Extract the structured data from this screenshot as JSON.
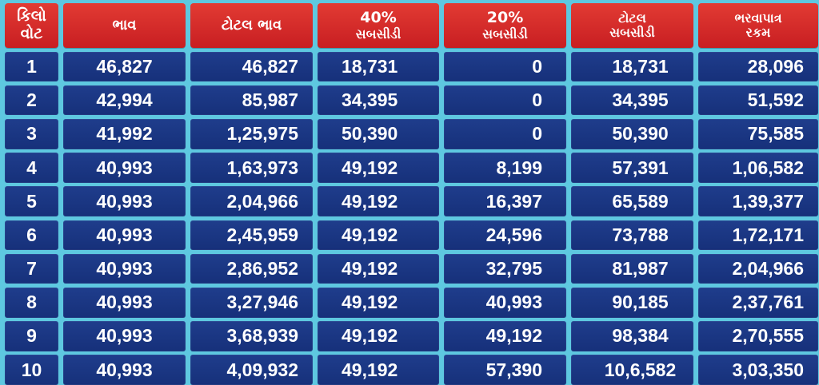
{
  "header": {
    "kilowatt": [
      "કિલો",
      "વોટ"
    ],
    "price": [
      "ભાવ"
    ],
    "total_price": [
      "ટોટલ ભાવ"
    ],
    "subsidy_40": [
      "40%",
      "સબસીડી"
    ],
    "subsidy_20": [
      "20%",
      "સબસીડી"
    ],
    "total_subsidy": [
      "ટોટલ",
      "સબસીડી"
    ],
    "payable_amount": [
      "ભરવાપાત્ર",
      "રકમ"
    ]
  },
  "rows": [
    {
      "kw": "1",
      "price": "46,827",
      "total_price": "46,827",
      "subsidy_40": "18,731",
      "subsidy_20": "0",
      "total_subsidy": "18,731",
      "payable": "28,096"
    },
    {
      "kw": "2",
      "price": "42,994",
      "total_price": "85,987",
      "subsidy_40": "34,395",
      "subsidy_20": "0",
      "total_subsidy": "34,395",
      "payable": "51,592"
    },
    {
      "kw": "3",
      "price": "41,992",
      "total_price": "1,25,975",
      "subsidy_40": "50,390",
      "subsidy_20": "0",
      "total_subsidy": "50,390",
      "payable": "75,585"
    },
    {
      "kw": "4",
      "price": "40,993",
      "total_price": "1,63,973",
      "subsidy_40": "49,192",
      "subsidy_20": "8,199",
      "total_subsidy": "57,391",
      "payable": "1,06,582"
    },
    {
      "kw": "5",
      "price": "40,993",
      "total_price": "2,04,966",
      "subsidy_40": "49,192",
      "subsidy_20": "16,397",
      "total_subsidy": "65,589",
      "payable": "1,39,377"
    },
    {
      "kw": "6",
      "price": "40,993",
      "total_price": "2,45,959",
      "subsidy_40": "49,192",
      "subsidy_20": "24,596",
      "total_subsidy": "73,788",
      "payable": "1,72,171"
    },
    {
      "kw": "7",
      "price": "40,993",
      "total_price": "2,86,952",
      "subsidy_40": "49,192",
      "subsidy_20": "32,795",
      "total_subsidy": "81,987",
      "payable": "2,04,966"
    },
    {
      "kw": "8",
      "price": "40,993",
      "total_price": "3,27,946",
      "subsidy_40": "49,192",
      "subsidy_20": "40,993",
      "total_subsidy": "90,185",
      "payable": "2,37,761"
    },
    {
      "kw": "9",
      "price": "40,993",
      "total_price": "3,68,939",
      "subsidy_40": "49,192",
      "subsidy_20": "49,192",
      "total_subsidy": "98,384",
      "payable": "2,70,555"
    },
    {
      "kw": "10",
      "price": "40,993",
      "total_price": "4,09,932",
      "subsidy_40": "49,192",
      "subsidy_20": "57,390",
      "total_subsidy": "10,6,582",
      "payable": "3,03,350"
    }
  ],
  "colors": {
    "header_bg": "#d42a27",
    "cell_bg": "#1b3784",
    "page_bg": "#5ec8e0",
    "text": "#ffffff"
  }
}
